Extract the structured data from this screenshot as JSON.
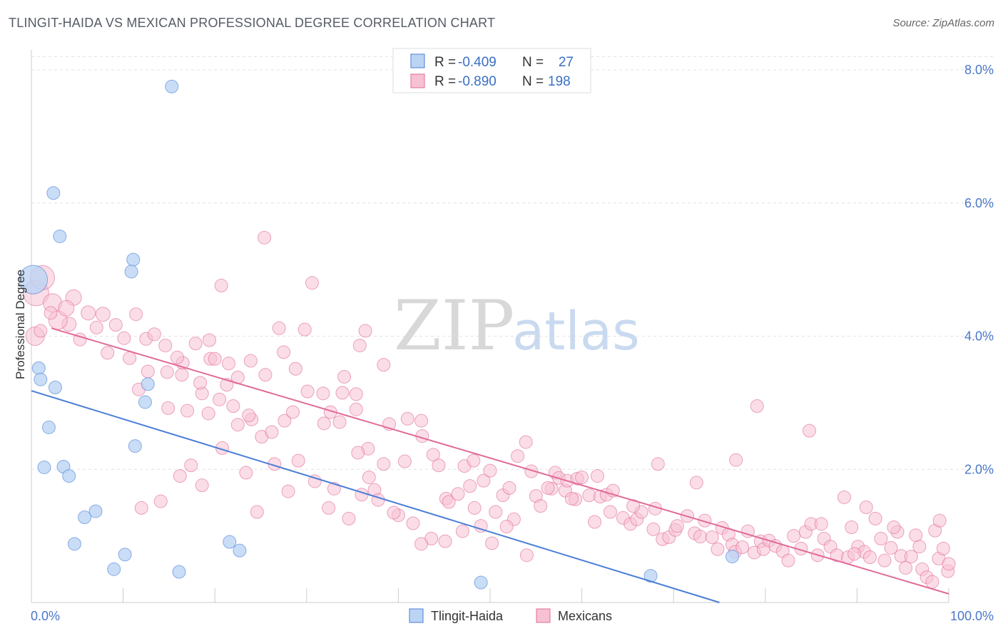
{
  "title": "TLINGIT-HAIDA VS MEXICAN PROFESSIONAL DEGREE CORRELATION CHART",
  "source": "Source: ZipAtlas.com",
  "watermark": {
    "zip": "ZIP",
    "atlas": "atlas"
  },
  "chart_data": {
    "type": "scatter",
    "ylabel": "Professional Degree",
    "xlim": [
      0,
      100
    ],
    "ylim": [
      0,
      8.3
    ],
    "x_tick_labels": [
      {
        "value": 0,
        "label": "0.0%"
      },
      {
        "value": 100,
        "label": "100.0%"
      }
    ],
    "y_tick_labels": [
      {
        "value": 2,
        "label": "2.0%"
      },
      {
        "value": 4,
        "label": "4.0%"
      },
      {
        "value": 6,
        "label": "6.0%"
      },
      {
        "value": 8,
        "label": "8.0%"
      }
    ],
    "grid": true,
    "legend_placement": "top-center",
    "series": [
      {
        "name": "Tlingit-Haida",
        "color": "#4a7ed8",
        "fill": "#bcd4f4",
        "legend": {
          "r_label": "R =",
          "r": "-0.409",
          "n_label": "N =",
          "n": "27"
        },
        "trend": {
          "x": [
            0,
            75
          ],
          "y": [
            3.18,
            0.0
          ]
        },
        "points": [
          [
            0.2,
            4.85,
            20
          ],
          [
            15.3,
            7.75,
            9
          ],
          [
            2.4,
            6.15,
            9
          ],
          [
            3.1,
            5.5,
            9
          ],
          [
            11.1,
            5.15,
            9
          ],
          [
            10.9,
            4.97,
            9
          ],
          [
            0.8,
            3.52,
            9
          ],
          [
            1.0,
            3.35,
            9
          ],
          [
            2.6,
            3.23,
            9
          ],
          [
            12.7,
            3.28,
            9
          ],
          [
            12.4,
            3.01,
            9
          ],
          [
            1.9,
            2.63,
            9
          ],
          [
            11.3,
            2.35,
            9
          ],
          [
            1.4,
            2.03,
            9
          ],
          [
            3.5,
            2.04,
            9
          ],
          [
            4.1,
            1.9,
            9
          ],
          [
            7.0,
            1.37,
            9
          ],
          [
            5.8,
            1.28,
            9
          ],
          [
            4.7,
            0.88,
            9
          ],
          [
            10.2,
            0.72,
            9
          ],
          [
            21.6,
            0.91,
            9
          ],
          [
            22.7,
            0.78,
            9
          ],
          [
            9.0,
            0.5,
            9
          ],
          [
            16.1,
            0.46,
            9
          ],
          [
            76.4,
            0.69,
            9
          ],
          [
            67.5,
            0.4,
            9
          ],
          [
            49.0,
            0.3,
            9
          ]
        ]
      },
      {
        "name": "Mexicans",
        "color": "#e06a98",
        "fill": "#f7c1d3",
        "legend": {
          "r_label": "R =",
          "r": "-0.890",
          "n_label": "N =",
          "n": "198"
        },
        "trend": {
          "x": [
            2.2,
            100
          ],
          "y": [
            4.12,
            0.13
          ]
        },
        "points": [
          [
            0.5,
            4.65,
            18
          ],
          [
            1.2,
            4.88,
            17
          ],
          [
            0.4,
            4.0,
            13
          ],
          [
            2.3,
            4.5,
            13
          ],
          [
            4.6,
            4.58,
            11
          ],
          [
            4.1,
            4.18,
            10
          ],
          [
            2.9,
            4.24,
            13
          ],
          [
            3.8,
            4.42,
            11
          ],
          [
            6.2,
            4.35,
            10
          ],
          [
            7.8,
            4.33,
            10
          ],
          [
            9.2,
            4.17,
            9
          ],
          [
            11.4,
            4.33,
            9
          ],
          [
            12.5,
            3.96,
            9
          ],
          [
            13.4,
            4.03,
            9
          ],
          [
            14.6,
            3.86,
            9
          ],
          [
            8.3,
            3.75,
            9
          ],
          [
            10.7,
            3.67,
            9
          ],
          [
            5.3,
            3.95,
            9
          ],
          [
            7.1,
            4.13,
            9
          ],
          [
            10.1,
            3.97,
            9
          ],
          [
            12.7,
            3.47,
            9
          ],
          [
            14.8,
            3.46,
            9
          ],
          [
            16.5,
            3.6,
            9
          ],
          [
            15.9,
            3.68,
            9
          ],
          [
            17.9,
            3.89,
            9
          ],
          [
            19.5,
            3.66,
            9
          ],
          [
            21.5,
            3.59,
            9
          ],
          [
            22.5,
            3.38,
            9
          ],
          [
            21.3,
            3.27,
            9
          ],
          [
            18.6,
            3.14,
            9
          ],
          [
            20.0,
            3.66,
            9
          ],
          [
            23.9,
            3.63,
            9
          ],
          [
            25.5,
            3.42,
            9
          ],
          [
            27.5,
            3.76,
            9
          ],
          [
            28.8,
            3.51,
            9
          ],
          [
            30.1,
            3.17,
            9
          ],
          [
            31.8,
            3.14,
            9
          ],
          [
            33.9,
            3.15,
            9
          ],
          [
            34.1,
            3.39,
            9
          ],
          [
            35.4,
            3.13,
            9
          ],
          [
            27.0,
            4.12,
            9
          ],
          [
            29.8,
            4.1,
            9
          ],
          [
            30.6,
            4.8,
            9
          ],
          [
            25.4,
            5.48,
            9
          ],
          [
            35.8,
            3.86,
            9
          ],
          [
            36.4,
            4.08,
            9
          ],
          [
            38.4,
            3.57,
            9
          ],
          [
            20.7,
            4.76,
            9
          ],
          [
            19.4,
            3.94,
            9
          ],
          [
            14.9,
            2.92,
            9
          ],
          [
            17.0,
            2.88,
            9
          ],
          [
            19.3,
            2.84,
            9
          ],
          [
            22.5,
            2.67,
            9
          ],
          [
            24.0,
            2.75,
            9
          ],
          [
            25.1,
            2.49,
            9
          ],
          [
            27.6,
            2.73,
            9
          ],
          [
            28.5,
            2.86,
            9
          ],
          [
            29.1,
            2.13,
            9
          ],
          [
            31.9,
            2.69,
            9
          ],
          [
            32.6,
            2.86,
            9
          ],
          [
            33.6,
            2.71,
            9
          ],
          [
            35.4,
            2.9,
            9
          ],
          [
            36.7,
            2.31,
            9
          ],
          [
            35.6,
            2.25,
            9
          ],
          [
            36.8,
            1.88,
            9
          ],
          [
            37.4,
            1.69,
            9
          ],
          [
            38.4,
            2.08,
            9
          ],
          [
            39.0,
            2.68,
            9
          ],
          [
            40.7,
            2.12,
            9
          ],
          [
            41.0,
            2.76,
            9
          ],
          [
            42.6,
            2.5,
            9
          ],
          [
            42.5,
            2.73,
            9
          ],
          [
            43.8,
            2.22,
            9
          ],
          [
            44.4,
            2.06,
            9
          ],
          [
            45.2,
            1.56,
            9
          ],
          [
            45.5,
            1.51,
            9
          ],
          [
            46.5,
            1.63,
            9
          ],
          [
            47.2,
            2.05,
            9
          ],
          [
            47.8,
            1.75,
            9
          ],
          [
            48.3,
            1.42,
            9
          ],
          [
            48.2,
            2.13,
            9
          ],
          [
            49.3,
            1.83,
            9
          ],
          [
            50.0,
            1.98,
            9
          ],
          [
            50.6,
            1.36,
            9
          ],
          [
            51.4,
            1.61,
            9
          ],
          [
            52.1,
            1.72,
            9
          ],
          [
            53.0,
            2.2,
            9
          ],
          [
            53.9,
            2.41,
            9
          ],
          [
            54.5,
            1.97,
            9
          ],
          [
            55.0,
            1.6,
            9
          ],
          [
            55.5,
            1.45,
            9
          ],
          [
            56.7,
            1.71,
            9
          ],
          [
            57.1,
            1.95,
            9
          ],
          [
            57.5,
            1.87,
            9
          ],
          [
            58.2,
            1.68,
            9
          ],
          [
            58.4,
            1.83,
            9
          ],
          [
            59.3,
            1.55,
            9
          ],
          [
            59.5,
            1.86,
            9
          ],
          [
            60.0,
            1.88,
            9
          ],
          [
            60.8,
            1.61,
            9
          ],
          [
            61.4,
            1.21,
            9
          ],
          [
            62.0,
            1.59,
            9
          ],
          [
            62.7,
            1.62,
            9
          ],
          [
            63.4,
            1.68,
            9
          ],
          [
            64.5,
            1.27,
            9
          ],
          [
            65.3,
            1.18,
            9
          ],
          [
            66.0,
            1.25,
            9
          ],
          [
            66.5,
            1.36,
            9
          ],
          [
            67.8,
            1.1,
            9
          ],
          [
            68.0,
            1.41,
            9
          ],
          [
            68.8,
            0.95,
            9
          ],
          [
            69.5,
            0.98,
            9
          ],
          [
            70.2,
            1.09,
            9
          ],
          [
            70.4,
            1.15,
            9
          ],
          [
            71.5,
            1.3,
            9
          ],
          [
            72.3,
            1.04,
            9
          ],
          [
            72.9,
            0.99,
            9
          ],
          [
            73.4,
            1.23,
            9
          ],
          [
            74.2,
            0.98,
            9
          ],
          [
            74.8,
            0.8,
            9
          ],
          [
            75.3,
            1.12,
            9
          ],
          [
            76.0,
            1.02,
            9
          ],
          [
            76.4,
            0.87,
            9
          ],
          [
            76.7,
            0.76,
            9
          ],
          [
            77.5,
            0.83,
            9
          ],
          [
            78.1,
            1.07,
            9
          ],
          [
            78.8,
            0.75,
            9
          ],
          [
            79.5,
            0.92,
            9
          ],
          [
            79.8,
            0.8,
            9
          ],
          [
            80.4,
            0.93,
            9
          ],
          [
            81.1,
            0.85,
            9
          ],
          [
            81.9,
            0.77,
            9
          ],
          [
            82.5,
            0.63,
            9
          ],
          [
            83.1,
            1.0,
            9
          ],
          [
            83.9,
            0.81,
            9
          ],
          [
            84.4,
            1.06,
            9
          ],
          [
            85.0,
            1.18,
            9
          ],
          [
            85.7,
            0.71,
            9
          ],
          [
            86.4,
            0.96,
            9
          ],
          [
            87.1,
            0.84,
            9
          ],
          [
            87.8,
            0.71,
            9
          ],
          [
            88.6,
            1.58,
            9
          ],
          [
            89.0,
            0.68,
            9
          ],
          [
            89.4,
            1.13,
            9
          ],
          [
            90.1,
            0.84,
            9
          ],
          [
            90.8,
            0.76,
            9
          ],
          [
            91.4,
            0.68,
            9
          ],
          [
            92.0,
            1.26,
            9
          ],
          [
            92.6,
            0.96,
            9
          ],
          [
            93.0,
            0.63,
            9
          ],
          [
            93.7,
            0.82,
            9
          ],
          [
            94.4,
            1.06,
            9
          ],
          [
            94.8,
            0.7,
            9
          ],
          [
            95.3,
            0.52,
            9
          ],
          [
            95.9,
            0.69,
            9
          ],
          [
            96.4,
            1.01,
            9
          ],
          [
            97.1,
            0.5,
            9
          ],
          [
            97.6,
            0.38,
            9
          ],
          [
            98.2,
            0.31,
            9
          ],
          [
            98.9,
            0.66,
            9
          ],
          [
            99.4,
            0.81,
            9
          ],
          [
            99.9,
            0.47,
            9
          ],
          [
            100.0,
            0.58,
            9
          ],
          [
            98.5,
            1.08,
            9
          ],
          [
            99.0,
            1.23,
            9
          ],
          [
            96.8,
            0.84,
            9
          ],
          [
            94.0,
            1.13,
            9
          ],
          [
            91.0,
            1.43,
            9
          ],
          [
            89.7,
            0.73,
            9
          ],
          [
            86.1,
            1.18,
            9
          ],
          [
            84.8,
            2.58,
            9
          ],
          [
            79.1,
            2.95,
            9
          ],
          [
            76.8,
            2.14,
            9
          ],
          [
            72.5,
            1.8,
            9
          ],
          [
            68.3,
            2.08,
            9
          ],
          [
            65.6,
            1.45,
            9
          ],
          [
            63.1,
            1.36,
            9
          ],
          [
            61.7,
            1.9,
            9
          ],
          [
            58.9,
            1.56,
            9
          ],
          [
            56.3,
            1.72,
            9
          ],
          [
            54.0,
            0.71,
            9
          ],
          [
            52.6,
            1.25,
            9
          ],
          [
            51.8,
            1.14,
            9
          ],
          [
            50.2,
            0.89,
            9
          ],
          [
            49.0,
            1.15,
            9
          ],
          [
            47.0,
            1.07,
            9
          ],
          [
            45.1,
            0.92,
            9
          ],
          [
            43.6,
            0.96,
            9
          ],
          [
            42.5,
            0.88,
            9
          ],
          [
            41.6,
            1.19,
            9
          ],
          [
            40.0,
            1.31,
            9
          ],
          [
            39.5,
            1.35,
            9
          ],
          [
            37.8,
            1.54,
            9
          ],
          [
            36.0,
            1.62,
            9
          ],
          [
            34.6,
            1.26,
            9
          ],
          [
            33.0,
            1.71,
            9
          ],
          [
            32.4,
            1.42,
            9
          ],
          [
            30.9,
            1.82,
            9
          ],
          [
            28.0,
            1.67,
            9
          ],
          [
            26.5,
            2.08,
            9
          ],
          [
            24.6,
            1.36,
            9
          ],
          [
            23.4,
            1.95,
            9
          ],
          [
            20.8,
            2.32,
            9
          ],
          [
            18.6,
            1.76,
            9
          ],
          [
            17.4,
            2.06,
            9
          ],
          [
            16.2,
            1.9,
            9
          ],
          [
            14.1,
            1.52,
            9
          ],
          [
            12.0,
            1.42,
            9
          ],
          [
            11.7,
            3.2,
            9
          ],
          [
            16.4,
            3.42,
            9
          ],
          [
            18.4,
            3.3,
            9
          ],
          [
            20.5,
            3.05,
            9
          ],
          [
            22.0,
            2.95,
            9
          ],
          [
            23.7,
            2.81,
            9
          ],
          [
            26.2,
            2.56,
            9
          ],
          [
            1.0,
            4.08,
            9
          ],
          [
            2.1,
            4.35,
            9
          ]
        ]
      }
    ]
  }
}
